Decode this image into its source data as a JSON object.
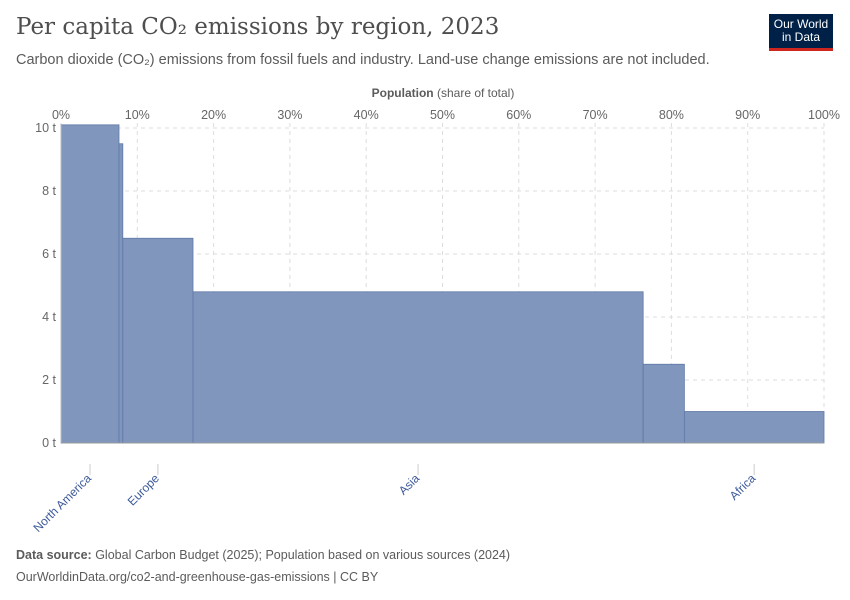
{
  "title": "Per capita CO₂ emissions by region, 2023",
  "subtitle": "Carbon dioxide (CO₂) emissions from fossil fuels and industry. Land-use change emissions are not included.",
  "logo": {
    "line1": "Our World",
    "line2": "in Data"
  },
  "footer": {
    "source_label": "Data source:",
    "source_text": " Global Carbon Budget (2025); Population based on various sources (2024)",
    "url": "OurWorldinData.org/co2-and-greenhouse-gas-emissions | CC BY"
  },
  "colors": {
    "bar": "#8096bd",
    "bar_edge": "#5f78a6",
    "label": "#3d5a99"
  },
  "chart_data": {
    "type": "bar",
    "subtype": "variable-width",
    "xlabel_bold": "Population",
    "xlabel_rest": " (share of total)",
    "ylabel": "",
    "xlim": [
      0,
      100
    ],
    "ylim": [
      0,
      10
    ],
    "grid": true,
    "x_ticks": [
      "0%",
      "10%",
      "20%",
      "30%",
      "40%",
      "50%",
      "60%",
      "70%",
      "80%",
      "90%",
      "100%"
    ],
    "y_ticks": [
      "0 t",
      "2 t",
      "4 t",
      "6 t",
      "8 t",
      "10 t"
    ],
    "bars": [
      {
        "label": "North America",
        "share_start": 0,
        "share_end": 7.6,
        "value": 10.1
      },
      {
        "label": "",
        "share_start": 7.6,
        "share_end": 8.1,
        "value": 9.5
      },
      {
        "label": "Europe",
        "share_start": 8.1,
        "share_end": 17.3,
        "value": 6.5
      },
      {
        "label": "Asia",
        "share_start": 17.3,
        "share_end": 76.3,
        "value": 4.8
      },
      {
        "label": "",
        "share_start": 76.3,
        "share_end": 81.7,
        "value": 2.5
      },
      {
        "label": "Africa",
        "share_start": 81.7,
        "share_end": 100,
        "value": 1.0
      }
    ]
  }
}
